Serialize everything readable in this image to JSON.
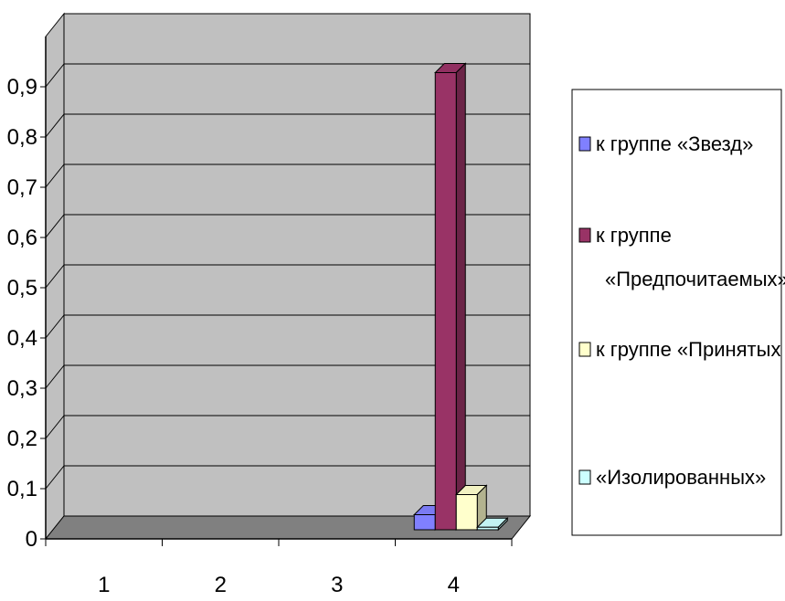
{
  "chart_data": {
    "type": "bar",
    "style": "3d-clustered-column",
    "categories": [
      "1",
      "2",
      "3",
      "4"
    ],
    "y_ticks": [
      "0",
      "0,1",
      "0,2",
      "0,3",
      "0,4",
      "0,5",
      "0,6",
      "0,7",
      "0,8",
      "0,9"
    ],
    "ylim": [
      0,
      1
    ],
    "grid": true,
    "legend_position": "right",
    "series": [
      {
        "name": "к группе «Звезд»",
        "color": "#8080ff",
        "values": [
          0,
          0,
          0,
          0.03
        ]
      },
      {
        "name": "к группе «Предпочитаемых»;",
        "color": "#993366",
        "values": [
          0,
          0,
          0,
          0.91
        ]
      },
      {
        "name": "к группе «Принятых",
        "color": "#ffffcc",
        "values": [
          0,
          0,
          0,
          0.07
        ]
      },
      {
        "name": "«Изолированных»",
        "color": "#ccffff",
        "values": [
          0,
          0,
          0,
          0.005
        ]
      }
    ]
  }
}
